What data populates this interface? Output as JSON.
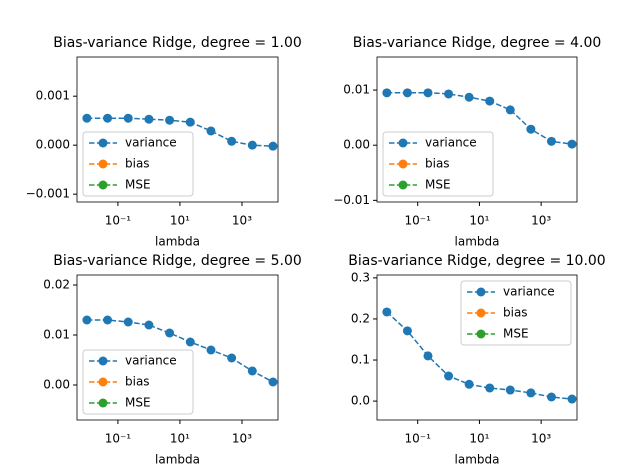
{
  "chart_data": [
    {
      "type": "line",
      "title": "Bias-variance Ridge, degree = 1.00",
      "xlabel": "lambda",
      "xscale": "log",
      "legend": "lower left",
      "x": [
        0.01,
        0.0464,
        0.2154,
        1,
        4.64,
        21.54,
        100,
        464.2,
        2154,
        10000
      ],
      "series": [
        {
          "name": "variance",
          "color": "#1f77b4",
          "values": [
            0.00055,
            0.00055,
            0.00055,
            0.00053,
            0.00051,
            0.00047,
            0.00029,
            8e-05,
            0.0,
            -2e-05
          ]
        },
        {
          "name": "bias",
          "color": "#ff7f0e",
          "values": [
            null,
            null,
            null,
            null,
            null,
            null,
            null,
            null,
            null,
            null
          ]
        },
        {
          "name": "MSE",
          "color": "#2ca02c",
          "values": [
            null,
            null,
            null,
            null,
            null,
            null,
            null,
            null,
            null,
            null
          ]
        }
      ],
      "xlim": [
        0.0048,
        14500
      ],
      "xticks": [
        {
          "value": 0.1,
          "label": "10⁻¹"
        },
        {
          "value": 10,
          "label": "10¹"
        },
        {
          "value": 1000,
          "label": "10³"
        }
      ],
      "ylim": [
        -0.00116,
        0.0018
      ],
      "yticks": [
        {
          "value": -0.001,
          "label": "−0.001"
        },
        {
          "value": 0,
          "label": "0.000"
        },
        0.001
      ]
    },
    {
      "type": "line",
      "title": "Bias-variance Ridge, degree = 4.00",
      "xlabel": "lambda",
      "xscale": "log",
      "legend": "lower left",
      "x": [
        0.01,
        0.0464,
        0.2154,
        1,
        4.64,
        21.54,
        100,
        464.2,
        2154,
        10000
      ],
      "series": [
        {
          "name": "variance",
          "color": "#1f77b4",
          "values": [
            0.0095,
            0.0095,
            0.0095,
            0.0093,
            0.0087,
            0.008,
            0.0064,
            0.0029,
            0.0007,
            0.0002
          ]
        },
        {
          "name": "bias",
          "color": "#ff7f0e",
          "values": [
            null,
            null,
            null,
            null,
            null,
            null,
            null,
            null,
            null,
            null
          ]
        },
        {
          "name": "MSE",
          "color": "#2ca02c",
          "values": [
            null,
            null,
            null,
            null,
            null,
            null,
            null,
            null,
            null,
            null
          ]
        }
      ],
      "xlim": [
        0.0048,
        14500
      ],
      "xticks": [
        {
          "value": 0.1,
          "label": "10⁻¹"
        },
        {
          "value": 10,
          "label": "10¹"
        },
        {
          "value": 1000,
          "label": "10³"
        }
      ],
      "ylim": [
        -0.0103,
        0.016
      ],
      "yticks": [
        {
          "value": -0.01,
          "label": "−0.01"
        },
        {
          "value": 0,
          "label": "0.00"
        },
        0.01
      ]
    },
    {
      "type": "line",
      "title": "Bias-variance Ridge, degree = 5.00",
      "xlabel": "lambda",
      "xscale": "log",
      "legend": "lower left",
      "x": [
        0.01,
        0.0464,
        0.2154,
        1,
        4.64,
        21.54,
        100,
        464.2,
        2154,
        10000
      ],
      "series": [
        {
          "name": "variance",
          "color": "#1f77b4",
          "values": [
            0.013,
            0.013,
            0.0126,
            0.012,
            0.0104,
            0.0086,
            0.007,
            0.0054,
            0.0028,
            0.0006
          ]
        },
        {
          "name": "bias",
          "color": "#ff7f0e",
          "values": [
            null,
            null,
            null,
            null,
            null,
            null,
            null,
            null,
            null,
            null
          ]
        },
        {
          "name": "MSE",
          "color": "#2ca02c",
          "values": [
            null,
            null,
            null,
            null,
            null,
            null,
            null,
            null,
            null,
            null
          ]
        }
      ],
      "xlim": [
        0.0048,
        14500
      ],
      "xticks": [
        {
          "value": 0.1,
          "label": "10⁻¹"
        },
        {
          "value": 10,
          "label": "10¹"
        },
        {
          "value": 1000,
          "label": "10³"
        }
      ],
      "ylim": [
        -0.007,
        0.022
      ],
      "yticks": [
        {
          "value": 0,
          "label": "0.00"
        },
        0.01,
        0.02
      ]
    },
    {
      "type": "line",
      "title": "Bias-variance Ridge, degree = 10.00",
      "xlabel": "lambda",
      "xscale": "log",
      "legend": "upper right",
      "x": [
        0.01,
        0.0464,
        0.2154,
        1,
        4.64,
        21.54,
        100,
        464.2,
        2154,
        10000
      ],
      "series": [
        {
          "name": "variance",
          "color": "#1f77b4",
          "values": [
            0.217,
            0.171,
            0.11,
            0.061,
            0.041,
            0.032,
            0.027,
            0.02,
            0.01,
            0.005
          ]
        },
        {
          "name": "bias",
          "color": "#ff7f0e",
          "values": [
            null,
            null,
            null,
            null,
            null,
            null,
            null,
            null,
            null,
            null
          ]
        },
        {
          "name": "MSE",
          "color": "#2ca02c",
          "values": [
            null,
            null,
            null,
            null,
            null,
            null,
            null,
            null,
            null,
            null
          ]
        }
      ],
      "xlim": [
        0.0048,
        14500
      ],
      "xticks": [
        {
          "value": 0.1,
          "label": "10⁻¹"
        },
        {
          "value": 10,
          "label": "10¹"
        },
        {
          "value": 1000,
          "label": "10³"
        }
      ],
      "ylim": [
        -0.046,
        0.307
      ],
      "yticks": [
        {
          "value": 0,
          "label": "0.0"
        },
        0.1,
        0.2,
        0.3
      ]
    }
  ]
}
